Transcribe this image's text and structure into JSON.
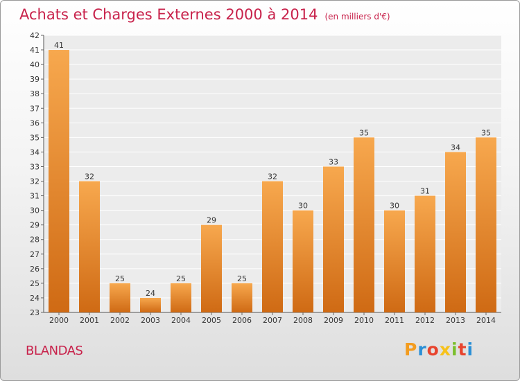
{
  "header": {
    "title": "Achats et Charges Externes 2000 à 2014",
    "subtitle": "(en milliers d'€)"
  },
  "footer": {
    "commune": "BLANDAS",
    "logo_letters": [
      "P",
      "r",
      "o",
      "x",
      "i",
      "t",
      "i"
    ],
    "logo_colors": [
      "#f39c1f",
      "#2a8fd6",
      "#e8442e",
      "#f7c21a",
      "#7bbf2c",
      "#e8442e",
      "#2a8fd6"
    ]
  },
  "colors": {
    "bar_top": "#f7a84e",
    "bar_bottom": "#cf6a14",
    "title": "#c8224b"
  },
  "chart_data": {
    "type": "bar",
    "categories": [
      "2000",
      "2001",
      "2002",
      "2003",
      "2004",
      "2005",
      "2006",
      "2007",
      "2008",
      "2009",
      "2010",
      "2011",
      "2012",
      "2013",
      "2014"
    ],
    "values": [
      41,
      32,
      25,
      24,
      25,
      29,
      25,
      32,
      30,
      33,
      35,
      30,
      31,
      34,
      35
    ],
    "yticks": [
      23,
      24,
      25,
      26,
      27,
      28,
      29,
      30,
      31,
      32,
      33,
      34,
      35,
      36,
      37,
      38,
      39,
      40,
      41,
      42
    ],
    "ylim": [
      23,
      42
    ],
    "grid": true,
    "xlabel": "",
    "ylabel": ""
  }
}
